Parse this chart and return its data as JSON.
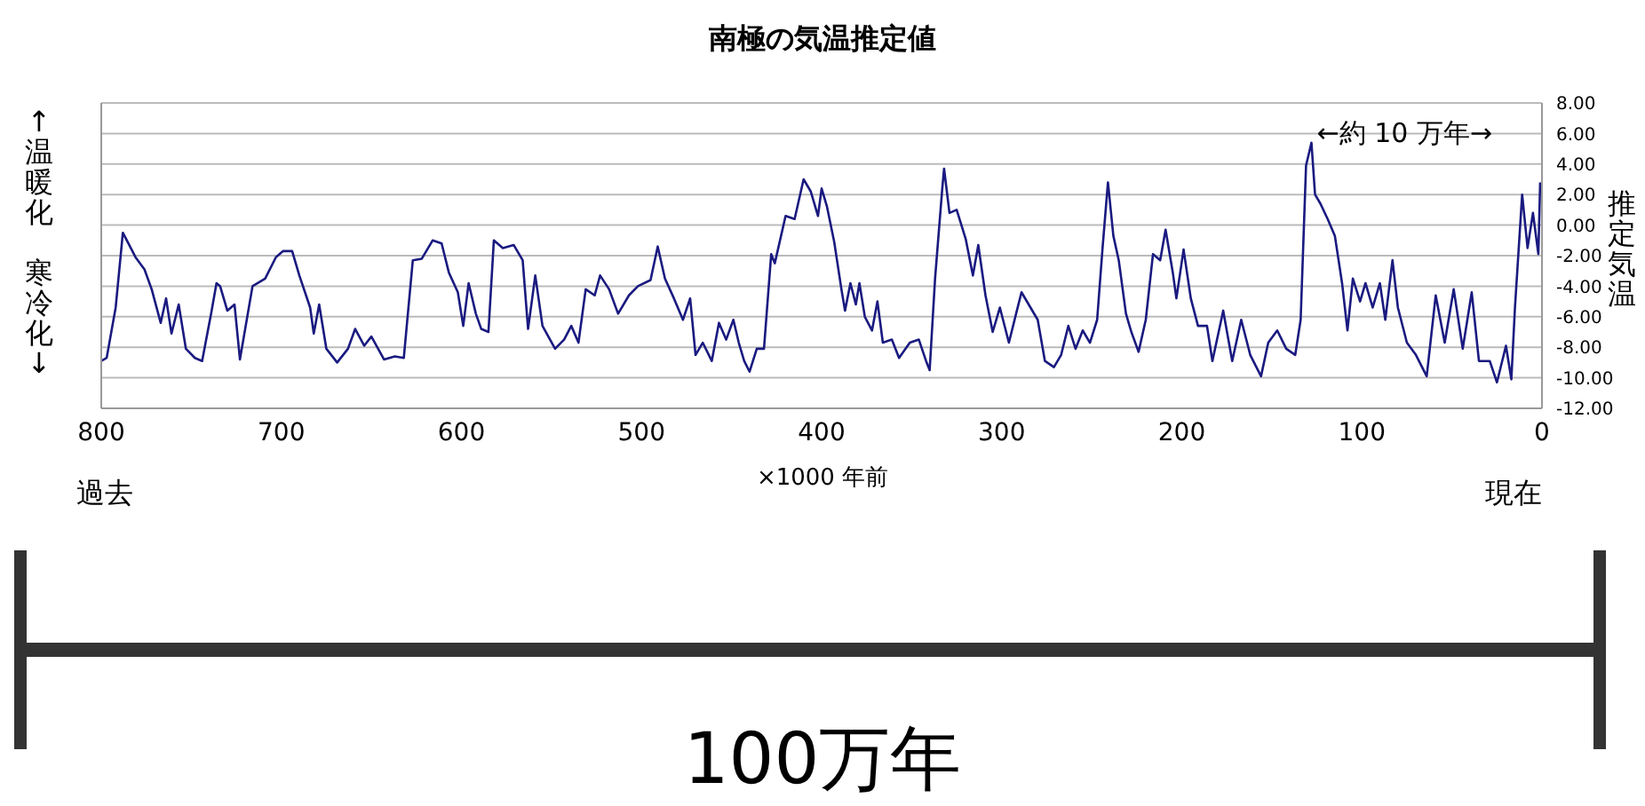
{
  "chart_data": {
    "type": "line",
    "title": "南極の気温推定値",
    "xlabel": "×1000 年前",
    "ylabel": "↑温暖化",
    "y2label": "推定気温",
    "annotations": [
      "過去",
      "現在",
      "←約 10 万年→",
      "100万年",
      "寒冷化↓"
    ],
    "xlim": [
      800,
      0
    ],
    "xticks": [
      800,
      700,
      600,
      500,
      400,
      300,
      200,
      100,
      0
    ],
    "y2lim": [
      -12,
      8
    ],
    "y2ticks": [
      {
        "value": 8,
        "label": "8.00"
      },
      {
        "value": 6,
        "label": "6.00"
      },
      {
        "value": 4,
        "label": "4.00"
      },
      {
        "value": 2,
        "label": "2.00"
      },
      {
        "value": 0,
        "label": "0.00"
      },
      {
        "value": -2,
        "label": "-2.00"
      },
      {
        "value": -4,
        "label": "-4.00"
      },
      {
        "value": -6,
        "label": "-6.00"
      },
      {
        "value": -8,
        "label": "-8.00"
      },
      {
        "value": -10,
        "label": "-10.00"
      },
      {
        "value": -12,
        "label": "-12.00"
      }
    ],
    "grid": "y",
    "marker": "none",
    "line_style": "solid",
    "x": [
      800,
      797,
      792,
      788,
      781,
      776,
      772,
      767,
      764,
      761,
      757,
      753,
      748,
      744,
      739,
      736,
      734,
      730,
      726,
      723,
      716,
      709,
      703,
      699,
      694,
      690,
      684,
      682,
      679,
      675,
      669,
      663,
      659,
      654,
      650,
      643,
      637,
      632,
      627,
      622,
      616,
      611,
      607,
      602,
      599,
      596,
      592,
      589,
      585,
      582,
      577,
      571,
      566,
      563,
      559,
      555,
      548,
      543,
      539,
      535,
      531,
      526,
      523,
      518,
      513,
      507,
      502,
      495,
      491,
      487,
      482,
      477,
      473,
      470,
      466,
      461,
      457,
      453,
      449,
      446,
      443,
      440,
      436,
      432,
      428,
      426,
      420,
      415,
      410,
      406,
      402,
      400,
      397,
      393,
      389,
      387,
      384,
      381,
      379,
      376,
      372,
      369,
      366,
      361,
      357,
      351,
      346,
      342,
      340,
      337,
      333,
      332,
      329,
      325,
      320,
      316,
      313,
      309,
      305,
      301,
      296,
      292,
      289,
      284,
      280,
      276,
      271,
      267,
      263,
      259,
      255,
      251,
      247,
      244,
      241,
      238,
      235,
      231,
      228,
      224,
      220,
      216,
      212,
      209,
      205,
      203,
      199,
      195,
      191,
      186,
      183,
      177,
      172,
      167,
      162,
      156,
      152,
      147,
      142,
      137,
      134,
      131,
      128,
      126,
      123,
      119,
      115,
      111,
      108,
      105,
      101,
      98,
      94,
      90,
      87,
      83,
      80,
      75,
      70,
      64,
      59,
      54,
      49,
      44,
      39,
      35,
      29,
      25,
      20,
      17,
      15,
      11,
      8,
      5,
      2,
      1
    ],
    "series": [
      {
        "color": "#1a1a80",
        "axis": "y2",
        "values": [
          -8.9,
          -8.7,
          -5.4,
          -0.5,
          -2.1,
          -2.9,
          -4.2,
          -6.4,
          -4.8,
          -7.1,
          -5.2,
          -8.1,
          -8.7,
          -8.9,
          -5.8,
          -3.8,
          -4.0,
          -5.6,
          -5.2,
          -8.8,
          -4.0,
          -3.5,
          -2.1,
          -1.7,
          -1.7,
          -3.3,
          -5.4,
          -7.1,
          -5.2,
          -8.1,
          -9.0,
          -8.1,
          -6.8,
          -7.9,
          -7.3,
          -8.8,
          -8.6,
          -8.7,
          -2.3,
          -2.2,
          -1.0,
          -1.2,
          -3.1,
          -4.4,
          -6.6,
          -3.8,
          -5.8,
          -6.8,
          -7.0,
          -1.0,
          -1.5,
          -1.3,
          -2.3,
          -6.8,
          -3.3,
          -6.6,
          -8.1,
          -7.5,
          -6.6,
          -7.7,
          -4.2,
          -4.6,
          -3.3,
          -4.2,
          -5.8,
          -4.6,
          -4.0,
          -3.6,
          -1.4,
          -3.5,
          -4.8,
          -6.2,
          -4.8,
          -8.5,
          -7.7,
          -8.9,
          -6.4,
          -7.5,
          -6.2,
          -7.7,
          -8.9,
          -9.6,
          -8.1,
          -8.1,
          -1.9,
          -2.5,
          0.6,
          0.4,
          3.0,
          2.2,
          0.6,
          2.4,
          1.2,
          -1.1,
          -4.2,
          -5.6,
          -3.8,
          -5.2,
          -3.8,
          -6.0,
          -6.9,
          -5.0,
          -7.7,
          -7.5,
          -8.7,
          -7.7,
          -7.5,
          -8.9,
          -9.5,
          -3.5,
          2.4,
          3.7,
          0.8,
          1.0,
          -0.9,
          -3.3,
          -1.3,
          -4.6,
          -7.0,
          -5.4,
          -7.7,
          -5.8,
          -4.4,
          -5.4,
          -6.2,
          -8.9,
          -9.3,
          -8.5,
          -6.6,
          -8.1,
          -6.9,
          -7.7,
          -6.2,
          -1.5,
          2.8,
          -0.7,
          -2.3,
          -5.8,
          -7.0,
          -8.3,
          -6.2,
          -1.9,
          -2.3,
          -0.3,
          -3.1,
          -4.8,
          -1.6,
          -4.8,
          -6.6,
          -6.6,
          -8.9,
          -5.6,
          -8.9,
          -6.2,
          -8.5,
          -9.9,
          -7.7,
          -6.9,
          -8.1,
          -8.5,
          -6.2,
          3.9,
          5.4,
          2.0,
          1.4,
          0.4,
          -0.7,
          -3.8,
          -6.9,
          -3.5,
          -5.0,
          -3.8,
          -5.4,
          -3.8,
          -6.2,
          -2.3,
          -5.4,
          -7.7,
          -8.5,
          -9.9,
          -4.6,
          -7.7,
          -4.2,
          -8.1,
          -4.4,
          -8.9,
          -8.9,
          -10.3,
          -7.9,
          -10.1,
          -5.4,
          2.0,
          -1.5,
          0.8,
          -1.9,
          2.8
        ]
      }
    ]
  }
}
